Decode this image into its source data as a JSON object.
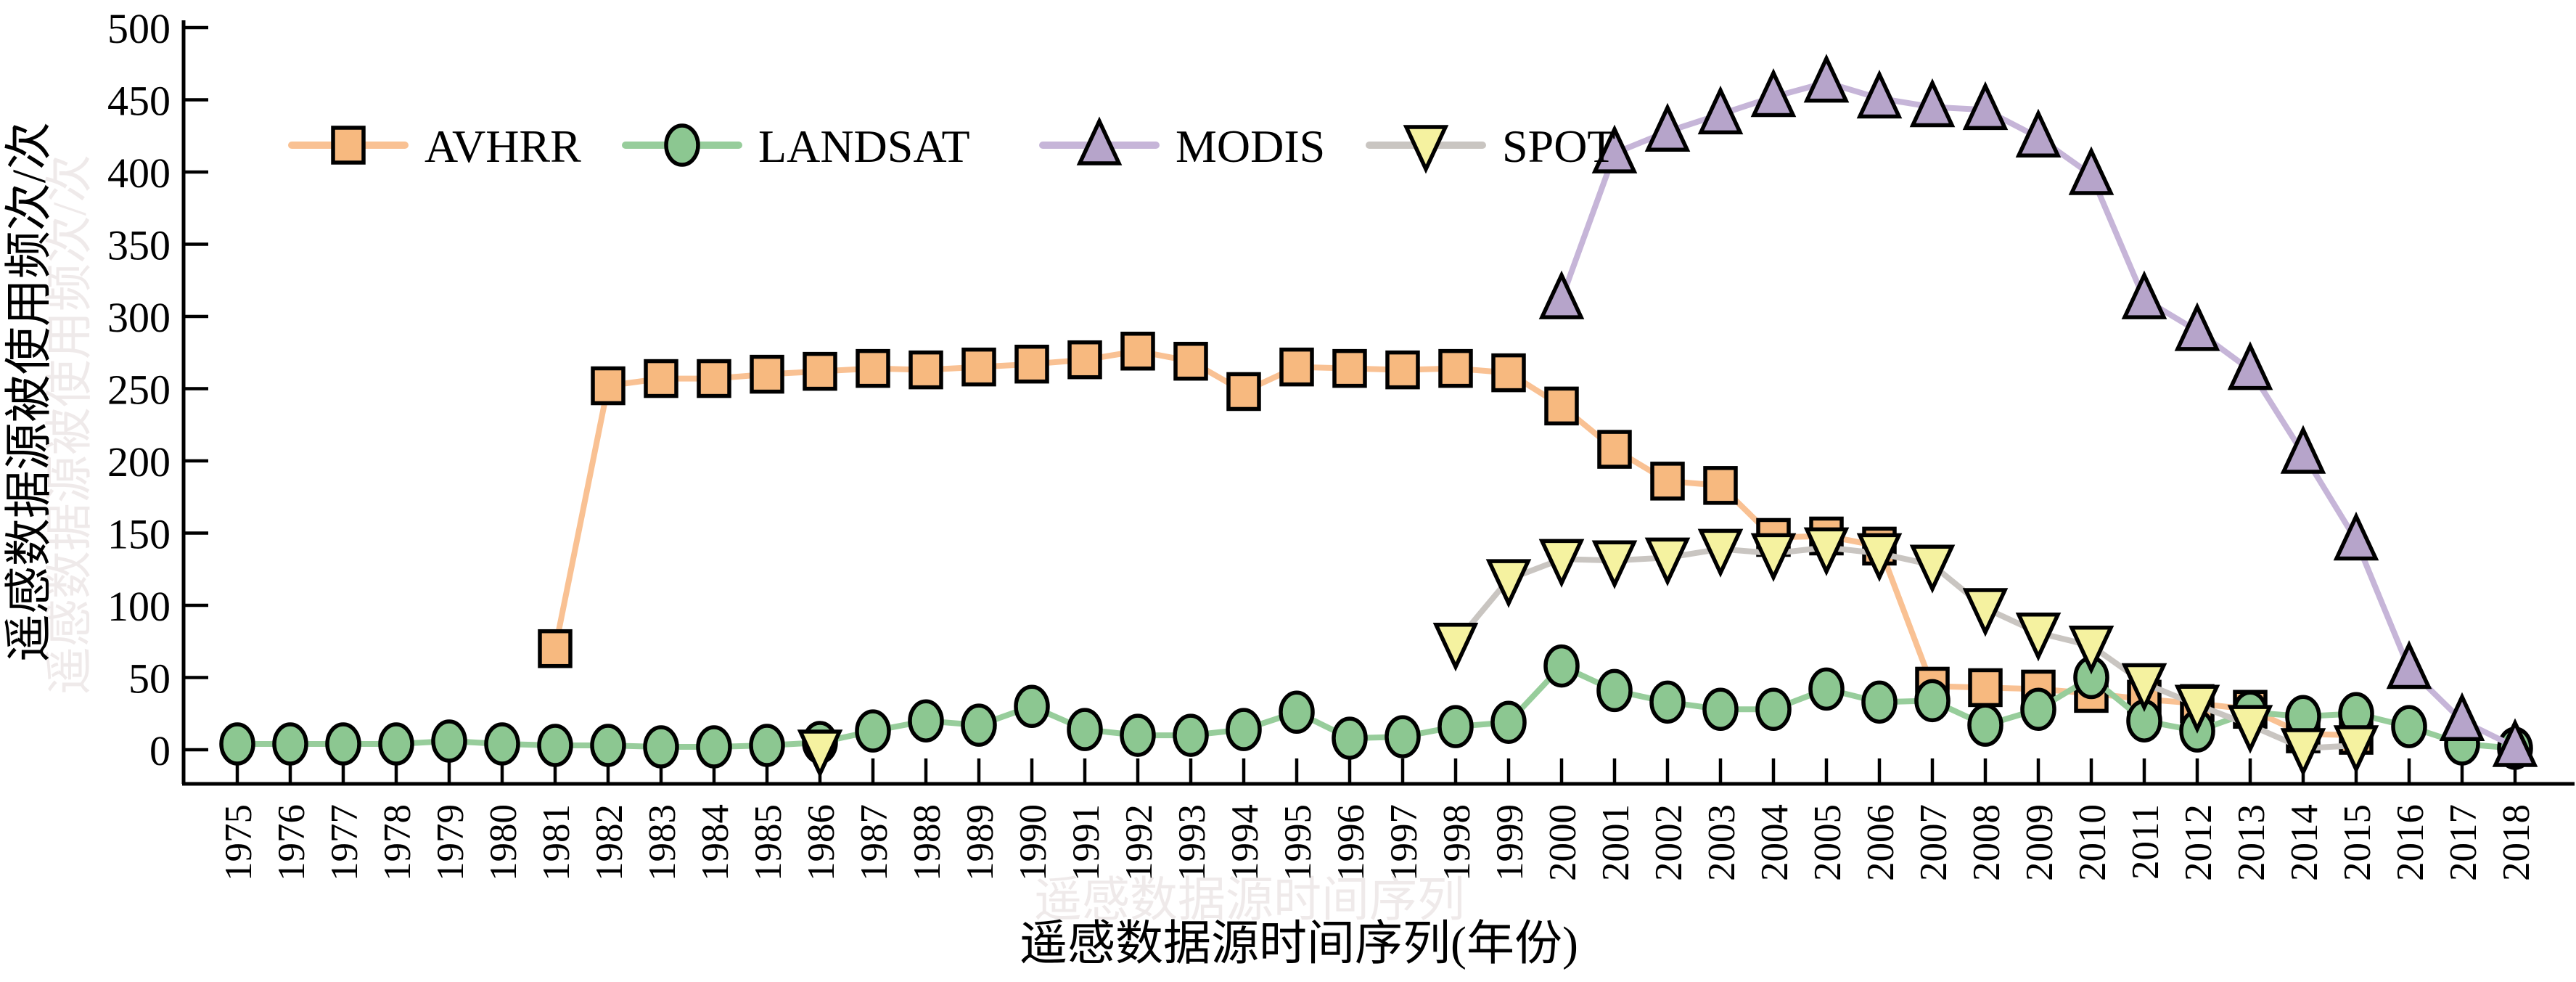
{
  "axes": {
    "ylabel": "遥感数据源被使用频次/次",
    "xlabel": "遥感数据源时间序列(年份)",
    "ghost_xlabel": "遥感数据源时间序列",
    "y_ticks": [
      0,
      50,
      100,
      150,
      200,
      250,
      300,
      350,
      400,
      450,
      500
    ],
    "x_years": [
      1975,
      1976,
      1977,
      1978,
      1979,
      1980,
      1981,
      1982,
      1983,
      1984,
      1985,
      1986,
      1987,
      1988,
      1989,
      1990,
      1991,
      1992,
      1993,
      1994,
      1995,
      1996,
      1997,
      1998,
      1999,
      2000,
      2001,
      2002,
      2003,
      2004,
      2005,
      2006,
      2007,
      2008,
      2009,
      2010,
      2011,
      2012,
      2013,
      2014,
      2015,
      2016,
      2017,
      2018
    ]
  },
  "legend": [
    {
      "label": "AVHRR",
      "series": "avhrr"
    },
    {
      "label": "LANDSAT",
      "series": "landsat"
    },
    {
      "label": "MODIS",
      "series": "modis"
    },
    {
      "label": "SPOT",
      "series": "spot"
    }
  ],
  "colors": {
    "avhrr_fill": "#f7b97f",
    "avhrr_line": "#f9c193",
    "landsat_fill": "#8cc791",
    "landsat_line": "#97cd9b",
    "modis_fill": "#b6a4ca",
    "modis_line": "#c6b5d8",
    "spot_fill": "#f5f2a0",
    "spot_line": "#c9c5c1",
    "axis": "#000000",
    "marker_outline": "#000000",
    "ghost_text": "#efeaea"
  },
  "chart_data": {
    "type": "line",
    "title": "",
    "xlabel": "遥感数据源时间序列(年份)",
    "ylabel": "遥感数据源被使用频次/次",
    "xlim": [
      1975,
      2018
    ],
    "ylim": [
      0,
      500
    ],
    "grid": false,
    "legend_position": "top-left-inside",
    "series": [
      {
        "name": "AVHRR",
        "id": "avhrr",
        "marker": "square",
        "points": [
          [
            1981,
            70
          ],
          [
            1982,
            252
          ],
          [
            1983,
            257
          ],
          [
            1984,
            257
          ],
          [
            1985,
            260
          ],
          [
            1986,
            262
          ],
          [
            1987,
            264
          ],
          [
            1988,
            263
          ],
          [
            1989,
            265
          ],
          [
            1990,
            267
          ],
          [
            1991,
            270
          ],
          [
            1992,
            276
          ],
          [
            1993,
            269
          ],
          [
            1994,
            248
          ],
          [
            1995,
            265
          ],
          [
            1996,
            264
          ],
          [
            1997,
            263
          ],
          [
            1998,
            264
          ],
          [
            1999,
            261
          ],
          [
            2000,
            238
          ],
          [
            2001,
            208
          ],
          [
            2002,
            186
          ],
          [
            2003,
            183
          ],
          [
            2004,
            147
          ],
          [
            2005,
            148
          ],
          [
            2006,
            141
          ],
          [
            2007,
            44
          ],
          [
            2008,
            43
          ],
          [
            2009,
            42
          ],
          [
            2010,
            39
          ],
          [
            2011,
            35
          ],
          [
            2012,
            32
          ],
          [
            2013,
            28
          ],
          [
            2014,
            11
          ],
          [
            2015,
            10
          ]
        ]
      },
      {
        "name": "LANDSAT",
        "id": "landsat",
        "marker": "circle",
        "points": [
          [
            1975,
            4
          ],
          [
            1976,
            4
          ],
          [
            1977,
            4
          ],
          [
            1978,
            4
          ],
          [
            1979,
            6
          ],
          [
            1980,
            4
          ],
          [
            1981,
            3
          ],
          [
            1982,
            3
          ],
          [
            1983,
            2
          ],
          [
            1984,
            2
          ],
          [
            1985,
            3
          ],
          [
            1986,
            5
          ],
          [
            1987,
            13
          ],
          [
            1988,
            20
          ],
          [
            1989,
            17
          ],
          [
            1990,
            30
          ],
          [
            1991,
            14
          ],
          [
            1992,
            10
          ],
          [
            1993,
            10
          ],
          [
            1994,
            14
          ],
          [
            1995,
            26
          ],
          [
            1996,
            8
          ],
          [
            1997,
            9
          ],
          [
            1998,
            16
          ],
          [
            1999,
            19
          ],
          [
            2000,
            58
          ],
          [
            2001,
            41
          ],
          [
            2002,
            33
          ],
          [
            2003,
            28
          ],
          [
            2004,
            28
          ],
          [
            2005,
            42
          ],
          [
            2006,
            33
          ],
          [
            2007,
            34
          ],
          [
            2008,
            17
          ],
          [
            2009,
            28
          ],
          [
            2010,
            50
          ],
          [
            2011,
            20
          ],
          [
            2012,
            13
          ],
          [
            2013,
            26
          ],
          [
            2014,
            23
          ],
          [
            2015,
            25
          ],
          [
            2016,
            16
          ],
          [
            2017,
            4
          ],
          [
            2018,
            1
          ]
        ]
      },
      {
        "name": "MODIS",
        "id": "modis",
        "marker": "triangle-up",
        "points": [
          [
            2000,
            312
          ],
          [
            2001,
            413
          ],
          [
            2002,
            428
          ],
          [
            2003,
            440
          ],
          [
            2004,
            452
          ],
          [
            2005,
            462
          ],
          [
            2006,
            451
          ],
          [
            2007,
            445
          ],
          [
            2008,
            443
          ],
          [
            2009,
            424
          ],
          [
            2010,
            398
          ],
          [
            2011,
            312
          ],
          [
            2012,
            290
          ],
          [
            2013,
            263
          ],
          [
            2014,
            205
          ],
          [
            2015,
            145
          ],
          [
            2016,
            56
          ],
          [
            2017,
            20
          ],
          [
            2018,
            2
          ]
        ]
      },
      {
        "name": "SPOT",
        "id": "spot",
        "marker": "triangle-down",
        "points": [
          [
            1986,
            0
          ],
          [
            1998,
            74
          ],
          [
            1999,
            118
          ],
          [
            2000,
            132
          ],
          [
            2001,
            131
          ],
          [
            2002,
            133
          ],
          [
            2003,
            139
          ],
          [
            2004,
            136
          ],
          [
            2005,
            140
          ],
          [
            2006,
            136
          ],
          [
            2007,
            128
          ],
          [
            2008,
            98
          ],
          [
            2009,
            81
          ],
          [
            2010,
            72
          ],
          [
            2011,
            46
          ],
          [
            2012,
            31
          ],
          [
            2013,
            17
          ],
          [
            2014,
            1
          ],
          [
            2015,
            3
          ]
        ]
      }
    ]
  }
}
